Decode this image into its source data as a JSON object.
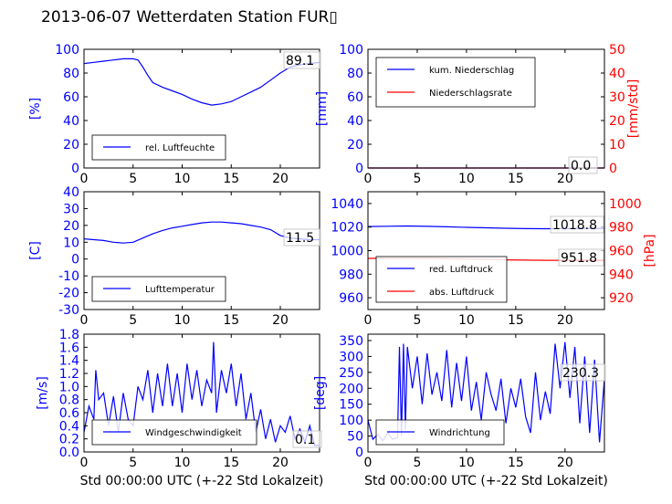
{
  "figure": {
    "title": "2013-06-07 Wetterdaten Station FUR▯",
    "colors": {
      "primary": "#0000ff",
      "secondary": "#ff0000",
      "axis": "#000000"
    }
  },
  "chart_data": [
    {
      "type": "line",
      "id": "humidity",
      "ylabel": "[%]",
      "ylim": [
        0,
        100
      ],
      "yticks": [
        0,
        20,
        40,
        60,
        80,
        100
      ],
      "xlim": [
        0,
        24
      ],
      "xticks": [
        0,
        5,
        10,
        15,
        20
      ],
      "series": [
        {
          "name": "rel. Luftfeuchte",
          "color": "#0000ff",
          "x": [
            0,
            1,
            2,
            3,
            4,
            5,
            5.5,
            6,
            6.5,
            7,
            8,
            9,
            10,
            11,
            12,
            13,
            14,
            15,
            16,
            17,
            18,
            19,
            20,
            21,
            22,
            23,
            24
          ],
          "y": [
            88,
            89,
            90,
            91,
            92,
            92,
            91,
            85,
            78,
            72,
            68,
            65,
            62,
            58,
            55,
            53,
            54,
            56,
            60,
            64,
            68,
            74,
            80,
            85,
            87,
            88,
            89
          ]
        }
      ],
      "annotation": "89.1",
      "legend": "lower-left"
    },
    {
      "type": "line",
      "id": "precip",
      "ylabel": "[mm]",
      "ylim": [
        0,
        100
      ],
      "yticks": [
        0,
        20,
        40,
        60,
        80,
        100
      ],
      "ylabel_right": "[mm/std]",
      "ylim_right": [
        0,
        50
      ],
      "yticks_right": [
        0,
        10,
        20,
        30,
        40,
        50
      ],
      "xlim": [
        0,
        24
      ],
      "xticks": [
        0,
        5,
        10,
        15,
        20
      ],
      "series": [
        {
          "name": "kum. Niederschlag",
          "color": "#0000ff",
          "axis": "left",
          "x": [
            0,
            24
          ],
          "y": [
            0,
            0
          ]
        },
        {
          "name": "Niederschlagsrate",
          "color": "#ff0000",
          "axis": "right",
          "x": [
            0,
            24
          ],
          "y": [
            0,
            0
          ]
        }
      ],
      "annotation": "0.0",
      "legend": "upper-left"
    },
    {
      "type": "line",
      "id": "temperature",
      "ylabel": "[C]",
      "ylim": [
        -30,
        40
      ],
      "yticks": [
        -30,
        -20,
        -10,
        0,
        10,
        20,
        30,
        40
      ],
      "xlim": [
        0,
        24
      ],
      "xticks": [
        0,
        5,
        10,
        15,
        20
      ],
      "series": [
        {
          "name": "Lufttemperatur",
          "color": "#0000ff",
          "x": [
            0,
            1,
            2,
            3,
            4,
            5,
            6,
            7,
            8,
            9,
            10,
            11,
            12,
            13,
            14,
            15,
            16,
            17,
            18,
            19,
            20,
            21,
            22,
            23,
            24
          ],
          "y": [
            12,
            11.5,
            11,
            10,
            9.5,
            10,
            12.5,
            15,
            17,
            18.5,
            19.5,
            20.5,
            21.5,
            22,
            22,
            21.5,
            21,
            20,
            19,
            17.5,
            14,
            12.5,
            12,
            11.5,
            11.5
          ]
        }
      ],
      "annotation": "11.5",
      "legend": "lower-left"
    },
    {
      "type": "line",
      "id": "pressure",
      "ylim": [
        950,
        1050
      ],
      "yticks": [
        960,
        980,
        1000,
        1020,
        1040
      ],
      "ylabel_right": "[hPa]",
      "ylim_right": [
        910,
        1010
      ],
      "yticks_right": [
        920,
        940,
        960,
        980,
        1000
      ],
      "xlim": [
        0,
        24
      ],
      "xticks": [
        0,
        5,
        10,
        15,
        20
      ],
      "series": [
        {
          "name": "red. Luftdruck",
          "color": "#0000ff",
          "axis": "left",
          "x": [
            0,
            2,
            4,
            6,
            8,
            10,
            12,
            14,
            16,
            18,
            20,
            22,
            24
          ],
          "y": [
            1020.5,
            1020.7,
            1020.9,
            1020.6,
            1020.2,
            1019.8,
            1019.4,
            1019,
            1018.7,
            1018.6,
            1018.7,
            1018.8,
            1018.8
          ]
        },
        {
          "name": "abs. Luftdruck",
          "color": "#ff0000",
          "axis": "right",
          "x": [
            0,
            2,
            4,
            6,
            8,
            10,
            12,
            14,
            16,
            18,
            20,
            22,
            24
          ],
          "y": [
            953.4,
            953.5,
            953.6,
            953.4,
            953.1,
            952.8,
            952.5,
            952.2,
            951.9,
            951.8,
            951.8,
            951.8,
            951.8
          ]
        }
      ],
      "annotations": [
        "1018.8",
        "951.8"
      ],
      "legend": "lower-left"
    },
    {
      "type": "line",
      "id": "wind-speed",
      "ylabel": "[m/s]",
      "ylim": [
        0,
        1.8
      ],
      "yticks": [
        0,
        0.2,
        0.4,
        0.6,
        0.8,
        1.0,
        1.2,
        1.4,
        1.6,
        1.8
      ],
      "ytick_labels": [
        "0.0",
        "0.2",
        "0.4",
        "0.6",
        "0.8",
        "1.0",
        "1.2",
        "1.4",
        "1.6",
        "1.8"
      ],
      "xlabel": "Std 00:00:00 UTC (+-22 Std Lokalzeit)",
      "xlim": [
        0,
        24
      ],
      "xticks": [
        0,
        5,
        10,
        15,
        20
      ],
      "series": [
        {
          "name": "Windgeschwindigkeit",
          "color": "#0000ff",
          "x": [
            0,
            0.5,
            1,
            1.2,
            1.5,
            2,
            2.5,
            3,
            3.5,
            4,
            4.5,
            5,
            5.5,
            6,
            6.5,
            7,
            7.5,
            8,
            8.5,
            9,
            9.5,
            10,
            10.5,
            11,
            11.5,
            12,
            12.5,
            13,
            13.2,
            13.5,
            14,
            14.5,
            15,
            15.5,
            16,
            16.5,
            17,
            17.5,
            18,
            18.5,
            19,
            19.5,
            20,
            20.5,
            21,
            21.5,
            22,
            22.5,
            23,
            23.5,
            24
          ],
          "y": [
            0.3,
            0.7,
            0.5,
            1.25,
            0.8,
            0.9,
            0.4,
            0.85,
            0.3,
            0.9,
            0.5,
            0.4,
            1.0,
            0.8,
            1.25,
            0.6,
            1.2,
            0.7,
            1.35,
            0.7,
            1.2,
            0.6,
            1.35,
            0.8,
            1.25,
            0.7,
            1.1,
            0.9,
            1.68,
            0.6,
            1.25,
            0.9,
            1.35,
            0.7,
            1.2,
            0.5,
            0.9,
            0.3,
            0.65,
            0.2,
            0.5,
            0.15,
            0.4,
            0.3,
            0.55,
            0.2,
            0.35,
            0.15,
            0.4,
            0.1,
            0.1
          ]
        }
      ],
      "annotation": "0.1",
      "legend": "lower-center"
    },
    {
      "type": "line",
      "id": "wind-direction",
      "ylabel": "[deg]",
      "ylim": [
        0,
        370
      ],
      "yticks": [
        0,
        50,
        100,
        150,
        200,
        250,
        300,
        350
      ],
      "xlabel": "Std 00:00:00 UTC (+-22 Std Lokalzeit)",
      "xlim": [
        0,
        24
      ],
      "xticks": [
        0,
        5,
        10,
        15,
        20
      ],
      "series": [
        {
          "name": "Windrichtung",
          "color": "#0000ff",
          "x": [
            0,
            0.5,
            1,
            1.5,
            2,
            2.5,
            3,
            3.2,
            3.4,
            3.6,
            3.8,
            4,
            4.5,
            5,
            5.5,
            6,
            6.5,
            7,
            7.5,
            8,
            8.5,
            9,
            9.5,
            10,
            10.5,
            11,
            11.5,
            12,
            12.5,
            13,
            13.5,
            14,
            14.5,
            15,
            15.5,
            16,
            16.5,
            17,
            17.5,
            18,
            18.5,
            19,
            19.5,
            20,
            20.5,
            21,
            21.5,
            22,
            22.5,
            23,
            23.5,
            24
          ],
          "y": [
            100,
            40,
            55,
            35,
            60,
            40,
            45,
            330,
            50,
            340,
            70,
            330,
            200,
            300,
            150,
            310,
            180,
            250,
            160,
            320,
            140,
            280,
            160,
            300,
            130,
            220,
            100,
            250,
            180,
            130,
            230,
            90,
            200,
            140,
            230,
            110,
            60,
            250,
            100,
            190,
            120,
            340,
            200,
            345,
            170,
            330,
            90,
            300,
            60,
            290,
            30,
            230
          ]
        }
      ],
      "annotation": "230.3",
      "legend": "lower-left"
    }
  ]
}
